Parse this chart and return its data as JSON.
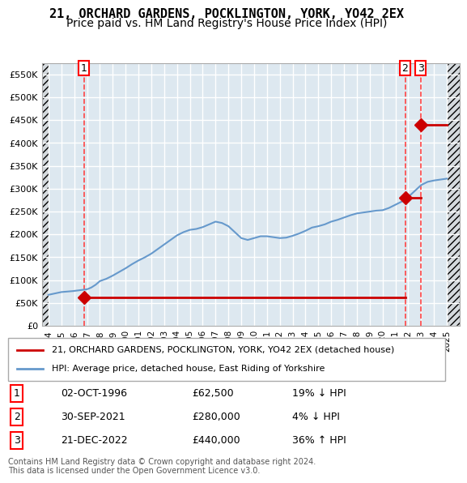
{
  "title": "21, ORCHARD GARDENS, POCKLINGTON, YORK, YO42 2EX",
  "subtitle": "Price paid vs. HM Land Registry's House Price Index (HPI)",
  "title_fontsize": 11,
  "subtitle_fontsize": 10,
  "hpi_label": "HPI: Average price, detached house, East Riding of Yorkshire",
  "price_label": "21, ORCHARD GARDENS, POCKLINGTON, YORK, YO42 2EX (detached house)",
  "transactions": [
    {
      "id": 1,
      "date_num": 1996.75,
      "price": 62500,
      "label": "02-OCT-1996",
      "pct": "19% ↓ HPI"
    },
    {
      "id": 2,
      "date_num": 2021.75,
      "price": 280000,
      "label": "30-SEP-2021",
      "pct": "4% ↓ HPI"
    },
    {
      "id": 3,
      "date_num": 2022.96,
      "price": 440000,
      "label": "21-DEC-2022",
      "pct": "36% ↑ HPI"
    }
  ],
  "hpi_color": "#6699cc",
  "price_color": "#cc0000",
  "vline_color": "#ff4444",
  "marker_color": "#cc0000",
  "bg_plot": "#dde8f0",
  "bg_hatch": "#e8e8e8",
  "grid_color": "#ffffff",
  "ylim": [
    0,
    575000
  ],
  "yticks": [
    0,
    50000,
    100000,
    150000,
    200000,
    250000,
    300000,
    350000,
    400000,
    450000,
    500000,
    550000
  ],
  "ytick_labels": [
    "£0",
    "£50K",
    "£100K",
    "£150K",
    "£200K",
    "£250K",
    "£300K",
    "£350K",
    "£400K",
    "£450K",
    "£500K",
    "£550K"
  ],
  "xlim": [
    1993.5,
    2026.0
  ],
  "xticks": [
    1994,
    1995,
    1996,
    1997,
    1998,
    1999,
    2000,
    2001,
    2002,
    2003,
    2004,
    2005,
    2006,
    2007,
    2008,
    2009,
    2010,
    2011,
    2012,
    2013,
    2014,
    2015,
    2016,
    2017,
    2018,
    2019,
    2020,
    2021,
    2022,
    2023,
    2024,
    2025
  ],
  "footnote": "Contains HM Land Registry data © Crown copyright and database right 2024.\nThis data is licensed under the Open Government Licence v3.0.",
  "hpi_x": [
    1994.0,
    1994.083,
    1994.167,
    1994.25,
    1994.333,
    1994.417,
    1994.5,
    1994.583,
    1994.667,
    1994.75,
    1994.833,
    1994.917,
    1995.0,
    1995.083,
    1995.167,
    1995.25,
    1995.333,
    1995.417,
    1995.5,
    1995.583,
    1995.667,
    1995.75,
    1995.833,
    1995.917,
    1996.0,
    1996.083,
    1996.167,
    1996.25,
    1996.333,
    1996.417,
    1996.5,
    1996.583,
    1996.667,
    1996.75,
    1996.833,
    1996.917,
    1997.0,
    1997.083,
    1997.167,
    1997.25,
    1997.333,
    1997.417,
    1997.5,
    1997.583,
    1997.667,
    1997.75,
    1997.833,
    1997.917,
    1998.0,
    1998.5,
    1999.0,
    1999.5,
    2000.0,
    2000.5,
    2001.0,
    2001.5,
    2002.0,
    2002.5,
    2003.0,
    2003.5,
    2004.0,
    2004.5,
    2005.0,
    2005.5,
    2006.0,
    2006.5,
    2007.0,
    2007.5,
    2008.0,
    2008.5,
    2009.0,
    2009.5,
    2010.0,
    2010.5,
    2011.0,
    2011.5,
    2012.0,
    2012.5,
    2013.0,
    2013.5,
    2014.0,
    2014.5,
    2015.0,
    2015.5,
    2016.0,
    2016.5,
    2017.0,
    2017.5,
    2018.0,
    2018.5,
    2019.0,
    2019.5,
    2020.0,
    2020.5,
    2021.0,
    2021.5,
    2022.0,
    2022.5,
    2023.0,
    2023.5,
    2024.0,
    2024.5,
    2025.0
  ],
  "hpi_y": [
    68000,
    68500,
    69000,
    69500,
    70000,
    70500,
    71000,
    71500,
    72000,
    72500,
    73000,
    73500,
    74000,
    74200,
    74400,
    74600,
    74800,
    75000,
    75200,
    75400,
    75600,
    75800,
    76000,
    76200,
    76500,
    76800,
    77100,
    77400,
    77700,
    78000,
    78300,
    78600,
    78900,
    79200,
    79500,
    79800,
    80200,
    81000,
    82000,
    83000,
    84000,
    85500,
    87000,
    88500,
    90000,
    92000,
    94000,
    96000,
    98000,
    103000,
    110000,
    118000,
    126000,
    135000,
    143000,
    150000,
    158000,
    168000,
    178000,
    188000,
    198000,
    205000,
    210000,
    212000,
    216000,
    222000,
    228000,
    225000,
    218000,
    205000,
    192000,
    188000,
    192000,
    196000,
    196000,
    194000,
    192000,
    193000,
    197000,
    202000,
    208000,
    215000,
    218000,
    222000,
    228000,
    232000,
    237000,
    242000,
    246000,
    248000,
    250000,
    252000,
    253000,
    258000,
    265000,
    272000,
    282000,
    295000,
    308000,
    315000,
    318000,
    320000,
    322000
  ]
}
